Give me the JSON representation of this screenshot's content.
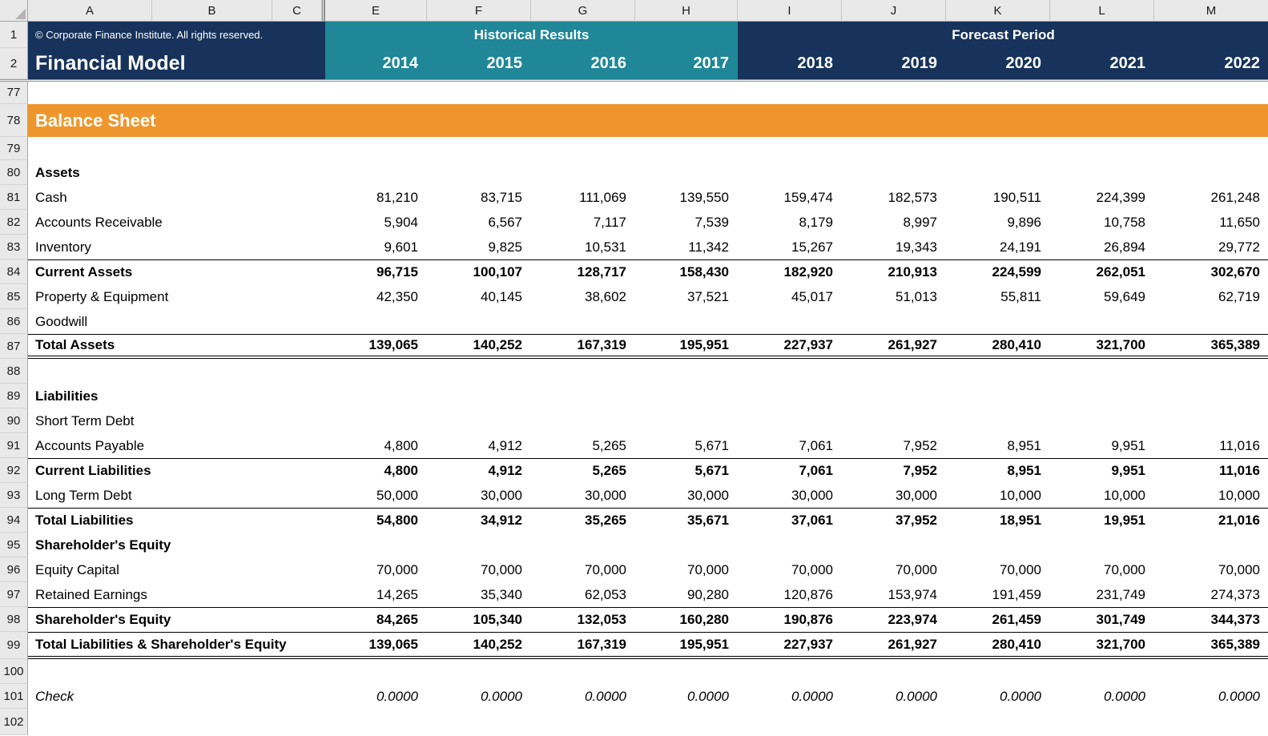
{
  "app": {
    "description": "Excel financial model spreadsheet"
  },
  "colors": {
    "navy": "#17335B",
    "teal": "#1F8798",
    "orange": "#EE962D",
    "header_gray": "#E9E9E9",
    "header_border": "#A6A6A6",
    "white_text": "#FFFFFF"
  },
  "column_headers": [
    "A",
    "B",
    "C",
    "E",
    "F",
    "G",
    "H",
    "I",
    "J",
    "K",
    "L",
    "M"
  ],
  "title_band": {
    "row1_num": "1",
    "row2_num": "2",
    "copyright": "© Corporate Finance Institute. All rights reserved.",
    "title": "Financial Model",
    "historical_label": "Historical Results",
    "forecast_label": "Forecast Period",
    "historical_years": [
      "2014",
      "2015",
      "2016",
      "2017"
    ],
    "forecast_years": [
      "2018",
      "2019",
      "2020",
      "2021",
      "2022"
    ]
  },
  "rows": [
    {
      "n": "77"
    },
    {
      "n": "78",
      "banner": "Balance Sheet"
    },
    {
      "n": "79"
    },
    {
      "n": "80",
      "label": "Assets",
      "bold": true
    },
    {
      "n": "81",
      "label": "Cash",
      "values": [
        "81,210",
        "83,715",
        "111,069",
        "139,550",
        "159,474",
        "182,573",
        "190,511",
        "224,399",
        "261,248"
      ]
    },
    {
      "n": "82",
      "label": "Accounts Receivable",
      "values": [
        "5,904",
        "6,567",
        "7,117",
        "7,539",
        "8,179",
        "8,997",
        "9,896",
        "10,758",
        "11,650"
      ]
    },
    {
      "n": "83",
      "label": "Inventory",
      "values": [
        "9,601",
        "9,825",
        "10,531",
        "11,342",
        "15,267",
        "19,343",
        "24,191",
        "26,894",
        "29,772"
      ]
    },
    {
      "n": "84",
      "label": "Current Assets",
      "bold": true,
      "top_border": true,
      "values": [
        "96,715",
        "100,107",
        "128,717",
        "158,430",
        "182,920",
        "210,913",
        "224,599",
        "262,051",
        "302,670"
      ]
    },
    {
      "n": "85",
      "label": "Property & Equipment",
      "values": [
        "42,350",
        "40,145",
        "38,602",
        "37,521",
        "45,017",
        "51,013",
        "55,811",
        "59,649",
        "62,719"
      ]
    },
    {
      "n": "86",
      "label": "Goodwill"
    },
    {
      "n": "87",
      "label": "Total Assets",
      "bold": true,
      "top_border": true,
      "double_bottom": true,
      "values": [
        "139,065",
        "140,252",
        "167,319",
        "195,951",
        "227,937",
        "261,927",
        "280,410",
        "321,700",
        "365,389"
      ]
    },
    {
      "n": "88"
    },
    {
      "n": "89",
      "label": "Liabilities",
      "bold": true
    },
    {
      "n": "90",
      "label": "Short Term Debt"
    },
    {
      "n": "91",
      "label": "Accounts Payable",
      "values": [
        "4,800",
        "4,912",
        "5,265",
        "5,671",
        "7,061",
        "7,952",
        "8,951",
        "9,951",
        "11,016"
      ]
    },
    {
      "n": "92",
      "label": "Current Liabilities",
      "bold": true,
      "top_border": true,
      "values": [
        "4,800",
        "4,912",
        "5,265",
        "5,671",
        "7,061",
        "7,952",
        "8,951",
        "9,951",
        "11,016"
      ]
    },
    {
      "n": "93",
      "label": "Long Term Debt",
      "values": [
        "50,000",
        "30,000",
        "30,000",
        "30,000",
        "30,000",
        "30,000",
        "10,000",
        "10,000",
        "10,000"
      ]
    },
    {
      "n": "94",
      "label": "Total Liabilities",
      "bold": true,
      "top_border": true,
      "values": [
        "54,800",
        "34,912",
        "35,265",
        "35,671",
        "37,061",
        "37,952",
        "18,951",
        "19,951",
        "21,016"
      ]
    },
    {
      "n": "95",
      "label": "Shareholder's Equity",
      "bold": true
    },
    {
      "n": "96",
      "label": "Equity Capital",
      "values": [
        "70,000",
        "70,000",
        "70,000",
        "70,000",
        "70,000",
        "70,000",
        "70,000",
        "70,000",
        "70,000"
      ]
    },
    {
      "n": "97",
      "label": "Retained Earnings",
      "values": [
        "14,265",
        "35,340",
        "62,053",
        "90,280",
        "120,876",
        "153,974",
        "191,459",
        "231,749",
        "274,373"
      ]
    },
    {
      "n": "98",
      "label": "Shareholder's Equity",
      "bold": true,
      "top_border": true,
      "values": [
        "84,265",
        "105,340",
        "132,053",
        "160,280",
        "190,876",
        "223,974",
        "261,459",
        "301,749",
        "344,373"
      ]
    },
    {
      "n": "99",
      "label": "Total Liabilities & Shareholder's Equity",
      "bold": true,
      "top_border": true,
      "double_bottom": true,
      "values": [
        "139,065",
        "140,252",
        "167,319",
        "195,951",
        "227,937",
        "261,927",
        "280,410",
        "321,700",
        "365,389"
      ]
    },
    {
      "n": "100"
    },
    {
      "n": "101",
      "label": "Check",
      "italic": true,
      "values": [
        "0.0000",
        "0.0000",
        "0.0000",
        "0.0000",
        "0.0000",
        "0.0000",
        "0.0000",
        "0.0000",
        "0.0000"
      ]
    },
    {
      "n": "102"
    }
  ]
}
